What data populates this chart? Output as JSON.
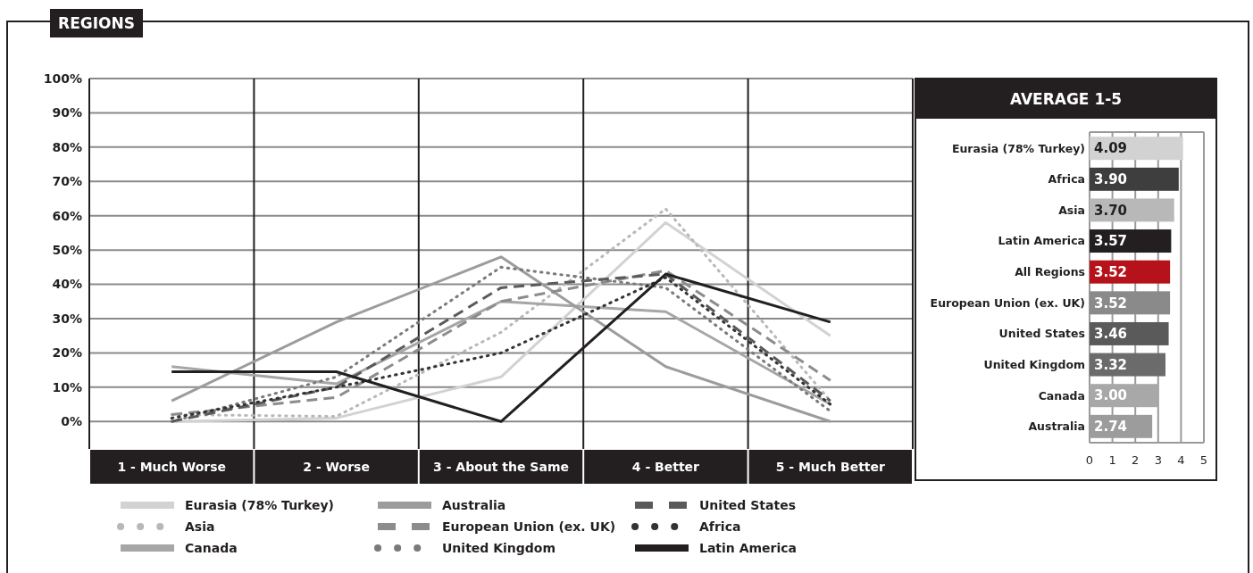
{
  "chart_data": [
    {
      "type": "line",
      "title": "REGIONS",
      "categories": [
        "1 - Much Worse",
        "2 - Worse",
        "3 - About the Same",
        "4 - Better",
        "5 - Much Better"
      ],
      "ylim": [
        -8,
        100
      ],
      "yticks": [
        {
          "value": 0,
          "label": "0%"
        },
        {
          "value": 10,
          "label": "10%"
        },
        {
          "value": 20,
          "label": "20%"
        },
        {
          "value": 30,
          "label": "30%"
        },
        {
          "value": 40,
          "label": "40%"
        },
        {
          "value": 50,
          "label": "50%"
        },
        {
          "value": 60,
          "label": "60%"
        },
        {
          "value": 70,
          "label": "70%"
        },
        {
          "value": 80,
          "label": "80%"
        },
        {
          "value": 90,
          "label": "90%"
        },
        {
          "value": 100,
          "label": "100%"
        }
      ],
      "grid": "y",
      "legend": "bottom",
      "marker": "none",
      "series": [
        {
          "name": "Eurasia (78% Turkey)",
          "color": "#d2d2d2",
          "line_style": "solid",
          "values": [
            0,
            1,
            13,
            58,
            25
          ]
        },
        {
          "name": "Asia",
          "color": "#b8b8b8",
          "line_style": "dotted",
          "values": [
            2,
            1.5,
            26,
            62,
            6
          ]
        },
        {
          "name": "Canada",
          "color": "#a6a6a6",
          "line_style": "solid",
          "values": [
            16,
            11,
            35,
            32,
            5
          ]
        },
        {
          "name": "Australia",
          "color": "#9c9c9c",
          "line_style": "solid",
          "values": [
            6,
            29,
            48,
            16,
            0
          ]
        },
        {
          "name": "European Union (ex. UK)",
          "color": "#8c8c8c",
          "line_style": "dashed",
          "values": [
            2,
            7,
            35,
            44,
            12
          ]
        },
        {
          "name": "United Kingdom",
          "color": "#7a7a7a",
          "line_style": "dotted",
          "values": [
            0,
            13,
            45,
            39,
            3
          ]
        },
        {
          "name": "United States",
          "color": "#5a5a5a",
          "line_style": "dashed",
          "values": [
            0,
            10,
            39,
            43,
            6
          ]
        },
        {
          "name": "Africa",
          "color": "#333333",
          "line_style": "dotted",
          "values": [
            1,
            10,
            20,
            42,
            5
          ]
        },
        {
          "name": "Latin America",
          "color": "#231f20",
          "line_style": "solid",
          "values": [
            14.5,
            14.5,
            0,
            43,
            29
          ]
        }
      ]
    },
    {
      "type": "bar",
      "orientation": "horizontal",
      "title": "AVERAGE 1-5",
      "categories": [
        "Eurasia (78% Turkey)",
        "Africa",
        "Asia",
        "Latin America",
        "All Regions",
        "European Union (ex. UK)",
        "United States",
        "United Kingdom",
        "Canada",
        "Australia"
      ],
      "values": [
        4.09,
        3.9,
        3.7,
        3.57,
        3.52,
        3.52,
        3.46,
        3.32,
        3.0,
        2.74
      ],
      "colors": [
        "#d2d2d2",
        "#3e3e3e",
        "#b8b8b8",
        "#231f20",
        "#b5121b",
        "#8a8a8a",
        "#5a5a5a",
        "#6b6b6b",
        "#a8a8a8",
        "#9c9c9c"
      ],
      "value_labels": [
        "4.09",
        "3.90",
        "3.70",
        "3.57",
        "3.52",
        "3.52",
        "3.46",
        "3.32",
        "3.00",
        "2.74"
      ],
      "xlim": [
        0,
        5
      ],
      "xticks": [
        0,
        1,
        2,
        3,
        4,
        5
      ],
      "grid": "x"
    }
  ]
}
